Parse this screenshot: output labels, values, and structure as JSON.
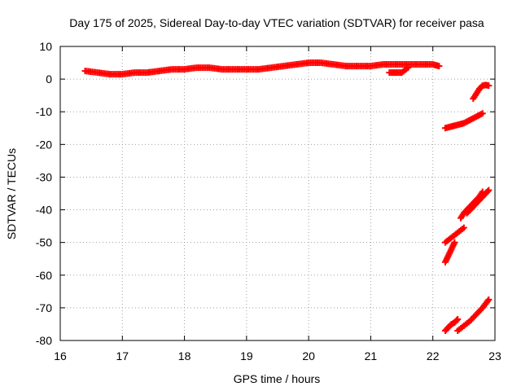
{
  "chart_data": {
    "type": "scatter",
    "title": "Day 175 of 2025, Sidereal Day-to-day VTEC variation (SDTVAR) for receiver pasa",
    "xlabel": "GPS time / hours",
    "ylabel": "SDTVAR / TECUs",
    "xlim": [
      16,
      23
    ],
    "ylim": [
      -80,
      10
    ],
    "x_ticks": [
      16,
      17,
      18,
      19,
      20,
      21,
      22,
      23
    ],
    "y_ticks": [
      10,
      0,
      -10,
      -20,
      -30,
      -40,
      -50,
      -60,
      -70,
      -80
    ],
    "grid": true,
    "legend": "none",
    "color": "#ff0000",
    "marker": "plus",
    "series": [
      {
        "x": [
          16.4,
          16.6,
          16.8,
          17.0,
          17.2,
          17.4,
          17.6,
          17.8,
          18.0,
          18.2,
          18.4,
          18.6,
          18.8,
          19.0,
          19.2,
          19.4,
          19.6,
          19.8,
          20.0,
          20.2,
          20.4,
          20.6,
          20.8,
          21.0,
          21.2,
          21.4,
          21.6,
          21.8,
          22.0,
          22.1
        ],
        "y": [
          2.5,
          2.0,
          1.5,
          1.5,
          2.0,
          2.0,
          2.5,
          3.0,
          3.0,
          3.5,
          3.5,
          3.0,
          3.0,
          3.0,
          3.0,
          3.5,
          4.0,
          4.5,
          5.0,
          5.0,
          4.5,
          4.0,
          4.0,
          4.0,
          4.5,
          4.5,
          4.5,
          4.5,
          4.5,
          4.0
        ]
      },
      {
        "x": [
          21.3,
          21.4,
          21.5,
          21.6
        ],
        "y": [
          2.0,
          2.0,
          2.0,
          3.5
        ]
      },
      {
        "x": [
          22.2,
          22.3,
          22.4,
          22.5,
          22.6,
          22.7,
          22.8
        ],
        "y": [
          -15,
          -14.5,
          -14,
          -13.5,
          -12.5,
          -11.5,
          -10.5
        ]
      },
      {
        "x": [
          22.65,
          22.7,
          22.75,
          22.8,
          22.85,
          22.9
        ],
        "y": [
          -6,
          -4.5,
          -3,
          -2,
          -1.8,
          -2
        ]
      },
      {
        "x": [
          22.45,
          22.5,
          22.55,
          22.6,
          22.65,
          22.7,
          22.75,
          22.8
        ],
        "y": [
          -42.5,
          -41,
          -40,
          -39,
          -38,
          -37,
          -36,
          -34.5
        ]
      },
      {
        "x": [
          22.55,
          22.6,
          22.65,
          22.7,
          22.75,
          22.8,
          22.85,
          22.9
        ],
        "y": [
          -41,
          -40,
          -39,
          -38,
          -37,
          -36,
          -35,
          -34
        ]
      },
      {
        "x": [
          22.2,
          22.3,
          22.4,
          22.5
        ],
        "y": [
          -50,
          -48.5,
          -47,
          -45.5
        ]
      },
      {
        "x": [
          22.2,
          22.25,
          22.3,
          22.35
        ],
        "y": [
          -56,
          -54,
          -52,
          -50
        ]
      },
      {
        "x": [
          22.2,
          22.25,
          22.3,
          22.35,
          22.4
        ],
        "y": [
          -77,
          -76,
          -75,
          -74.5,
          -73.5
        ]
      },
      {
        "x": [
          22.4,
          22.5,
          22.6,
          22.7,
          22.8,
          22.9
        ],
        "y": [
          -77,
          -75.5,
          -74,
          -72,
          -70,
          -67.5
        ]
      }
    ]
  }
}
